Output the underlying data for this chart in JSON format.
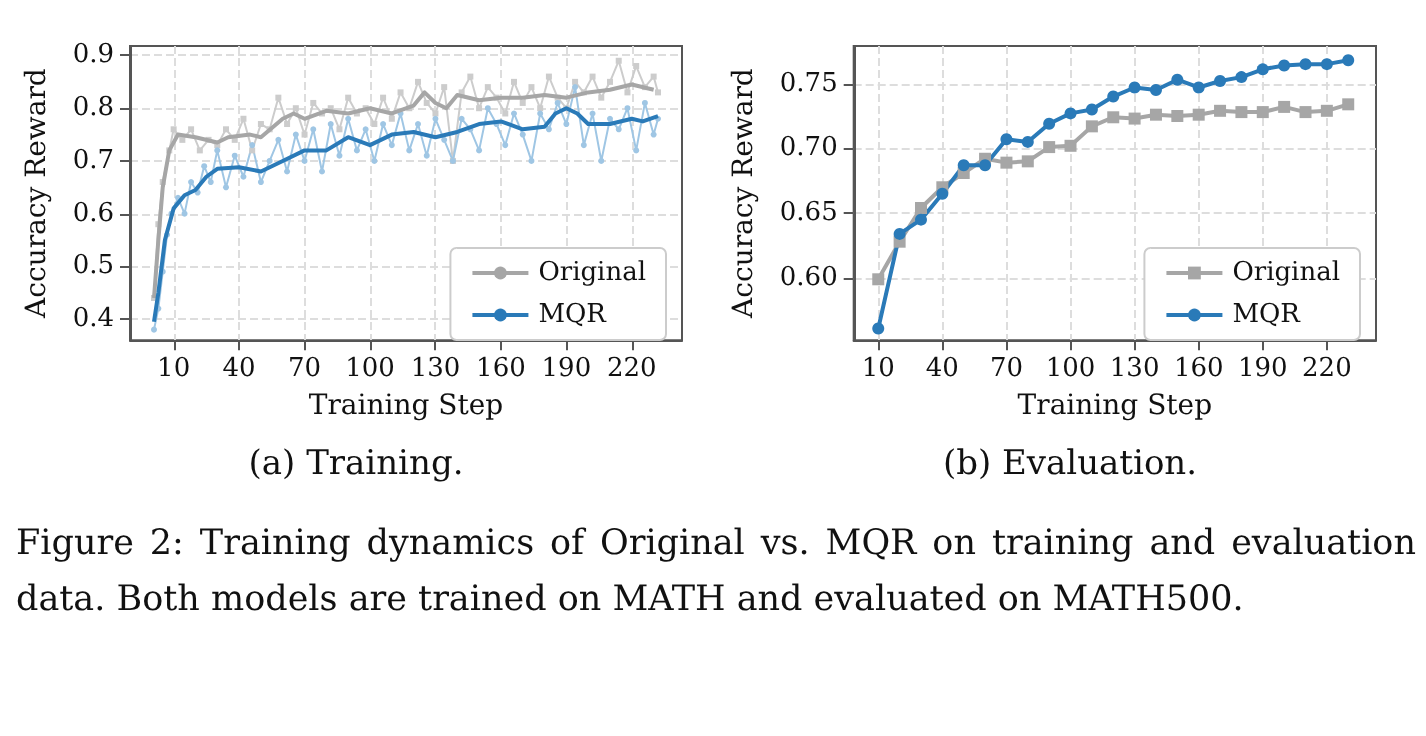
{
  "chart_data": [
    {
      "type": "line",
      "xlabel": "Training Step",
      "ylabel": "Accuracy Reward",
      "xlim": [
        -10,
        243
      ],
      "xticks": [
        10,
        40,
        70,
        100,
        130,
        160,
        190,
        220
      ],
      "ylim": [
        0.36,
        0.918
      ],
      "yticks": [
        0.4,
        0.5,
        0.6,
        0.7,
        0.8,
        0.9
      ],
      "grid": true,
      "legend": "bottom right",
      "annotations": [
        "(a) Training."
      ],
      "series": [
        {
          "color": "#cccccc",
          "marker": "square",
          "x": [
            1,
            3,
            5,
            8,
            10,
            14,
            18,
            22,
            26,
            30,
            34,
            38,
            42,
            46,
            50,
            54,
            58,
            62,
            66,
            70,
            74,
            78,
            82,
            86,
            90,
            94,
            98,
            102,
            106,
            110,
            114,
            118,
            122,
            126,
            130,
            134,
            138,
            142,
            146,
            150,
            154,
            158,
            162,
            166,
            170,
            174,
            178,
            182,
            186,
            190,
            194,
            198,
            202,
            206,
            210,
            214,
            218,
            222,
            226,
            230,
            232
          ],
          "values": [
            0.44,
            0.58,
            0.66,
            0.72,
            0.76,
            0.74,
            0.76,
            0.72,
            0.74,
            0.73,
            0.76,
            0.74,
            0.78,
            0.72,
            0.77,
            0.76,
            0.82,
            0.77,
            0.8,
            0.75,
            0.81,
            0.79,
            0.8,
            0.76,
            0.82,
            0.79,
            0.8,
            0.77,
            0.82,
            0.78,
            0.83,
            0.8,
            0.85,
            0.81,
            0.79,
            0.84,
            0.7,
            0.83,
            0.86,
            0.8,
            0.84,
            0.82,
            0.79,
            0.85,
            0.81,
            0.84,
            0.8,
            0.86,
            0.82,
            0.8,
            0.85,
            0.83,
            0.86,
            0.82,
            0.85,
            0.89,
            0.83,
            0.88,
            0.84,
            0.86,
            0.83
          ]
        },
        {
          "color": "#9fc6e4",
          "marker": "circle",
          "x": [
            1,
            3,
            5,
            7,
            9,
            12,
            15,
            18,
            21,
            24,
            27,
            30,
            34,
            38,
            42,
            46,
            50,
            54,
            58,
            62,
            66,
            70,
            74,
            78,
            82,
            86,
            90,
            94,
            98,
            102,
            106,
            110,
            114,
            118,
            122,
            126,
            130,
            134,
            138,
            142,
            146,
            150,
            154,
            158,
            162,
            166,
            170,
            174,
            178,
            182,
            186,
            190,
            194,
            198,
            202,
            206,
            210,
            214,
            218,
            222,
            226,
            230,
            232
          ],
          "values": [
            0.38,
            0.42,
            0.49,
            0.56,
            0.6,
            0.63,
            0.6,
            0.66,
            0.64,
            0.69,
            0.66,
            0.72,
            0.65,
            0.71,
            0.67,
            0.73,
            0.66,
            0.7,
            0.74,
            0.68,
            0.75,
            0.7,
            0.76,
            0.68,
            0.77,
            0.71,
            0.78,
            0.72,
            0.76,
            0.7,
            0.77,
            0.73,
            0.79,
            0.72,
            0.77,
            0.71,
            0.78,
            0.74,
            0.7,
            0.78,
            0.76,
            0.72,
            0.8,
            0.77,
            0.73,
            0.79,
            0.75,
            0.7,
            0.79,
            0.76,
            0.81,
            0.77,
            0.84,
            0.73,
            0.79,
            0.7,
            0.78,
            0.76,
            0.8,
            0.72,
            0.81,
            0.75,
            0.78
          ]
        },
        {
          "name": "Original",
          "color": "#a6a6a6",
          "marker": "none",
          "x": [
            1,
            3,
            5,
            8,
            12,
            20,
            30,
            35,
            45,
            50,
            60,
            65,
            70,
            80,
            90,
            100,
            110,
            120,
            125,
            130,
            135,
            140,
            150,
            160,
            170,
            180,
            190,
            200,
            210,
            220,
            230
          ],
          "values": [
            0.44,
            0.55,
            0.65,
            0.72,
            0.75,
            0.745,
            0.735,
            0.745,
            0.75,
            0.745,
            0.78,
            0.79,
            0.78,
            0.795,
            0.79,
            0.8,
            0.79,
            0.805,
            0.83,
            0.81,
            0.8,
            0.825,
            0.815,
            0.82,
            0.82,
            0.825,
            0.82,
            0.83,
            0.835,
            0.845,
            0.835
          ]
        },
        {
          "name": "MQR",
          "color": "#2a7ab8",
          "marker": "none",
          "x": [
            1,
            3,
            6,
            10,
            15,
            20,
            25,
            30,
            40,
            50,
            60,
            70,
            80,
            90,
            100,
            110,
            120,
            130,
            140,
            150,
            160,
            170,
            180,
            185,
            190,
            195,
            200,
            210,
            220,
            225,
            232
          ],
          "values": [
            0.395,
            0.45,
            0.55,
            0.61,
            0.635,
            0.645,
            0.67,
            0.685,
            0.688,
            0.68,
            0.7,
            0.72,
            0.72,
            0.745,
            0.73,
            0.75,
            0.755,
            0.745,
            0.755,
            0.77,
            0.775,
            0.76,
            0.765,
            0.79,
            0.8,
            0.79,
            0.77,
            0.77,
            0.78,
            0.775,
            0.785
          ]
        }
      ]
    },
    {
      "type": "line",
      "xlabel": "Training Step",
      "ylabel": "Accuracy Reward",
      "xlim": [
        -1.5,
        243
      ],
      "xticks": [
        10,
        40,
        70,
        100,
        130,
        160,
        190,
        220
      ],
      "ylim": [
        0.552,
        0.779
      ],
      "yticks": [
        {
          "value": 0.6,
          "label": "0.60"
        },
        {
          "value": 0.65,
          "label": "0.65"
        },
        {
          "value": 0.7,
          "label": "0.70"
        },
        {
          "value": 0.75,
          "label": "0.75"
        }
      ],
      "grid": true,
      "legend": "bottom right",
      "annotations": [
        "(b) Evaluation.",
        "Figure 2: Training dynamics of Original vs. MQR on training and evaluation data. Both models are trained on MATH and evaluated on MATH500."
      ],
      "series": [
        {
          "name": "Original",
          "color": "#a6a6a6",
          "marker": "square",
          "x": [
            10,
            20,
            30,
            40,
            50,
            60,
            70,
            80,
            90,
            100,
            110,
            120,
            130,
            140,
            150,
            160,
            170,
            180,
            190,
            200,
            210,
            220,
            230
          ],
          "values": [
            0.599,
            0.628,
            0.654,
            0.67,
            0.681,
            0.692,
            0.689,
            0.69,
            0.701,
            0.702,
            0.717,
            0.724,
            0.723,
            0.726,
            0.725,
            0.726,
            0.729,
            0.728,
            0.728,
            0.732,
            0.728,
            0.729,
            0.734
          ]
        },
        {
          "name": "MQR",
          "color": "#2a7ab8",
          "marker": "circle",
          "x": [
            10,
            20,
            30,
            40,
            50,
            60,
            70,
            80,
            90,
            100,
            110,
            120,
            130,
            140,
            150,
            160,
            170,
            180,
            190,
            200,
            210,
            220,
            230
          ],
          "values": [
            0.561,
            0.634,
            0.645,
            0.665,
            0.687,
            0.687,
            0.707,
            0.705,
            0.719,
            0.727,
            0.73,
            0.74,
            0.747,
            0.745,
            0.753,
            0.747,
            0.752,
            0.755,
            0.761,
            0.764,
            0.765,
            0.765,
            0.768
          ]
        }
      ]
    }
  ]
}
